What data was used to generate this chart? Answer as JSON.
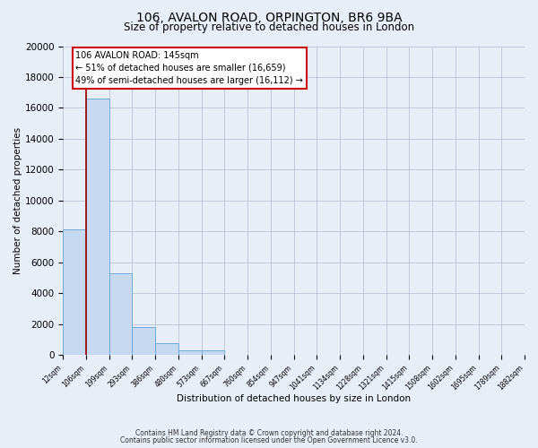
{
  "title": "106, AVALON ROAD, ORPINGTON, BR6 9BA",
  "subtitle": "Size of property relative to detached houses in London",
  "xlabel": "Distribution of detached houses by size in London",
  "ylabel": "Number of detached properties",
  "bar_values": [
    8100,
    16600,
    5300,
    1800,
    750,
    280,
    280,
    0,
    0,
    0,
    0,
    0,
    0,
    0,
    0,
    0,
    0,
    0,
    0,
    0
  ],
  "bar_labels": [
    "12sqm",
    "106sqm",
    "199sqm",
    "293sqm",
    "386sqm",
    "480sqm",
    "573sqm",
    "667sqm",
    "760sqm",
    "854sqm",
    "947sqm",
    "1041sqm",
    "1134sqm",
    "1228sqm",
    "1321sqm",
    "1415sqm",
    "1508sqm",
    "1602sqm",
    "1695sqm",
    "1789sqm",
    "1882sqm"
  ],
  "bar_color": "#c6d9f0",
  "bar_edge_color": "#6fa8dc",
  "vline_color": "#990000",
  "ylim": [
    0,
    20000
  ],
  "yticks": [
    0,
    2000,
    4000,
    6000,
    8000,
    10000,
    12000,
    14000,
    16000,
    18000,
    20000
  ],
  "annotation_text": "106 AVALON ROAD: 145sqm\n← 51% of detached houses are smaller (16,659)\n49% of semi-detached houses are larger (16,112) →",
  "annotation_box_color": "#ffffff",
  "annotation_border_color": "#cc0000",
  "footer1": "Contains HM Land Registry data © Crown copyright and database right 2024.",
  "footer2": "Contains public sector information licensed under the Open Government Licence v3.0.",
  "bg_color": "#e8eef8",
  "plot_bg_color": "#e8eef8"
}
